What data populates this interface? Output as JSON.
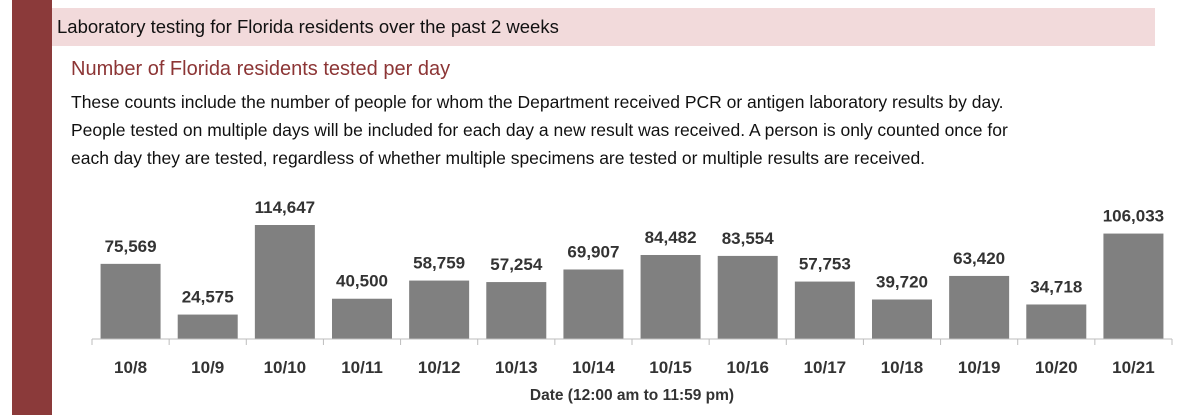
{
  "header": {
    "title": "Laboratory testing for Florida residents over the past 2 weeks"
  },
  "section": {
    "title": "Number of Florida residents tested per day",
    "description_lines": [
      "These counts include the number of people for whom the Department received PCR or antigen laboratory results by day.",
      "People tested on multiple days will be included for each day a new result was received. A person is only counted once for",
      "each day they are tested, regardless of whether multiple specimens are tested or multiple results are received."
    ]
  },
  "chart_data": {
    "type": "bar",
    "title": "Number of Florida residents tested per day",
    "xlabel": "Date (12:00 am to 11:59 pm)",
    "ylabel": "",
    "categories": [
      "10/8",
      "10/9",
      "10/10",
      "10/11",
      "10/12",
      "10/13",
      "10/14",
      "10/15",
      "10/16",
      "10/17",
      "10/18",
      "10/19",
      "10/20",
      "10/21"
    ],
    "values": [
      75569,
      24575,
      114647,
      40500,
      58759,
      57254,
      69907,
      84482,
      83554,
      57753,
      39720,
      63420,
      34718,
      106033
    ],
    "data_labels": [
      "75,569",
      "24,575",
      "114,647",
      "40,500",
      "58,759",
      "57,254",
      "69,907",
      "84,482",
      "83,554",
      "57,753",
      "39,720",
      "63,420",
      "34,718",
      "106,033"
    ],
    "ylim": [
      0,
      114647
    ],
    "bar_color": "#808080",
    "grid": false,
    "legend": "none"
  }
}
